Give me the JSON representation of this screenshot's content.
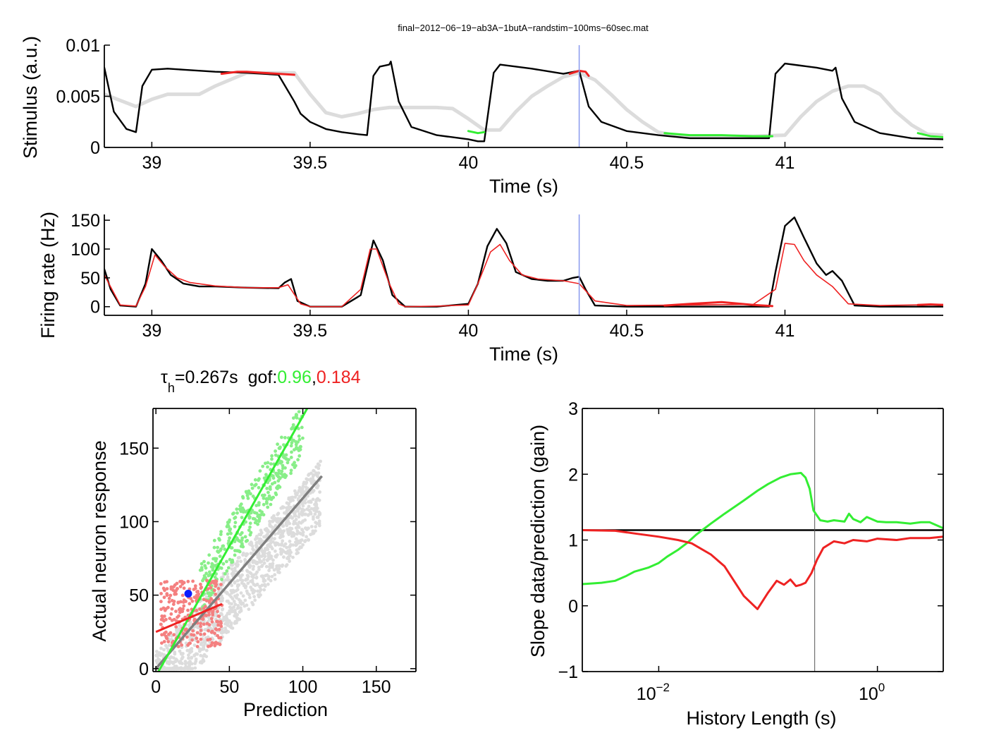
{
  "figure_title": "final−2012−06−19−ab3A−1butA−randstim−100ms−60sec.mat",
  "annotation": {
    "tau": "τ",
    "tau_sub": "h",
    "tau_value": "=0.267s",
    "gof_label": "gof:",
    "gof_green": "0.96",
    "gof_sep": ",",
    "gof_red": "0.184"
  },
  "colors": {
    "black": "#000000",
    "light_gray": "#dcdcdc",
    "green": "#33ee33",
    "red": "#ee2222",
    "blue_marker": "#0a1cff",
    "vline_blue": "#8899ee",
    "light_green": "#88ee88",
    "light_red": "#f48080",
    "gray_fit": "#7f7f7f"
  },
  "chart_data": [
    {
      "type": "line",
      "panel": "stimulus",
      "xlabel": "Time (s)",
      "ylabel": "Stimulus (a.u.)",
      "xlim": [
        38.85,
        41.5
      ],
      "ylim": [
        0,
        0.01
      ],
      "xticks": [
        39,
        39.5,
        40,
        40.5,
        41
      ],
      "xtick_labels": [
        "39",
        "39.5",
        "40",
        "40.5",
        "41"
      ],
      "yticks": [
        0,
        0.005,
        0.01
      ],
      "ytick_labels": [
        "0",
        "0.005",
        "0.01"
      ],
      "marker_time": 40.35,
      "series": [
        {
          "style": "black",
          "x": [
            38.85,
            38.88,
            38.92,
            38.95,
            38.97,
            39.0,
            39.05,
            39.1,
            39.2,
            39.3,
            39.4,
            39.45,
            39.47,
            39.5,
            39.55,
            39.6,
            39.65,
            39.68,
            39.7,
            39.72,
            39.75,
            39.755,
            39.78,
            39.82,
            39.9,
            40.0,
            40.03,
            40.05,
            40.08,
            40.1,
            40.15,
            40.2,
            40.3,
            40.35,
            40.38,
            40.42,
            40.5,
            40.6,
            40.7,
            40.8,
            40.9,
            40.95,
            40.97,
            41.0,
            41.05,
            41.1,
            41.15,
            41.16,
            41.18,
            41.22,
            41.3,
            41.4,
            41.5
          ],
          "y": [
            0.0078,
            0.0035,
            0.0018,
            0.0015,
            0.006,
            0.0076,
            0.0077,
            0.0076,
            0.0074,
            0.0073,
            0.0071,
            0.0045,
            0.0033,
            0.0025,
            0.0018,
            0.0015,
            0.0013,
            0.0012,
            0.007,
            0.0079,
            0.0081,
            0.0084,
            0.0045,
            0.002,
            0.0012,
            0.0008,
            0.0006,
            0.0006,
            0.0073,
            0.0081,
            0.0079,
            0.0077,
            0.0072,
            0.0075,
            0.004,
            0.0025,
            0.0016,
            0.0012,
            0.0009,
            0.0009,
            0.0009,
            0.0009,
            0.0072,
            0.0082,
            0.008,
            0.0078,
            0.0075,
            0.0078,
            0.0048,
            0.0025,
            0.0014,
            0.0009,
            0.0008
          ]
        },
        {
          "style": "light_gray",
          "x": [
            38.85,
            38.9,
            38.95,
            39.0,
            39.05,
            39.1,
            39.15,
            39.2,
            39.3,
            39.35,
            39.45,
            39.5,
            39.55,
            39.6,
            39.65,
            39.7,
            39.75,
            39.8,
            39.9,
            39.95,
            40.0,
            40.05,
            40.1,
            40.15,
            40.2,
            40.25,
            40.3,
            40.35,
            40.4,
            40.45,
            40.5,
            40.55,
            40.6,
            40.65,
            40.7,
            40.8,
            40.9,
            41.0,
            41.05,
            41.1,
            41.15,
            41.2,
            41.25,
            41.3,
            41.35,
            41.4,
            41.45,
            41.5
          ],
          "y": [
            0.0052,
            0.0046,
            0.004,
            0.0047,
            0.0052,
            0.0052,
            0.0052,
            0.006,
            0.0073,
            0.0073,
            0.0073,
            0.0052,
            0.0034,
            0.003,
            0.0033,
            0.0037,
            0.0039,
            0.0039,
            0.0039,
            0.0038,
            0.0028,
            0.0017,
            0.0017,
            0.0035,
            0.005,
            0.006,
            0.0069,
            0.0073,
            0.0066,
            0.0052,
            0.0037,
            0.0025,
            0.0015,
            0.0012,
            0.0011,
            0.0011,
            0.0011,
            0.0012,
            0.003,
            0.0045,
            0.0055,
            0.006,
            0.006,
            0.0052,
            0.0035,
            0.0022,
            0.0013,
            0.0012
          ]
        },
        {
          "style": "red",
          "x": [
            39.22,
            39.27,
            39.3,
            39.35,
            39.4,
            39.45
          ],
          "y": [
            0.0072,
            0.0074,
            0.0074,
            0.0073,
            0.0072,
            0.0071
          ]
        },
        {
          "style": "red",
          "x": [
            40.32,
            40.35,
            40.37,
            40.38
          ],
          "y": [
            0.0072,
            0.0075,
            0.0074,
            0.007
          ]
        },
        {
          "style": "green",
          "x": [
            40.0,
            40.03,
            40.05
          ],
          "y": [
            0.0016,
            0.0014,
            0.0015
          ]
        },
        {
          "style": "green",
          "x": [
            40.62,
            40.7,
            40.8,
            40.9,
            40.96
          ],
          "y": [
            0.0014,
            0.0012,
            0.0012,
            0.0011,
            0.0011
          ]
        },
        {
          "style": "green",
          "x": [
            41.42,
            41.46,
            41.5
          ],
          "y": [
            0.0014,
            0.0011,
            0.001
          ]
        }
      ]
    },
    {
      "type": "line",
      "panel": "firing",
      "xlabel": "Time (s)",
      "ylabel": "Firing rate (Hz)",
      "xlim": [
        38.85,
        41.5
      ],
      "ylim": [
        -15,
        160
      ],
      "xticks": [
        39,
        39.5,
        40,
        40.5,
        41
      ],
      "xtick_labels": [
        "39",
        "39.5",
        "40",
        "40.5",
        "41"
      ],
      "yticks": [
        0,
        50,
        100,
        150
      ],
      "ytick_labels": [
        "0",
        "50",
        "100",
        "150"
      ],
      "marker_time": 40.35,
      "series": [
        {
          "style": "black",
          "x": [
            38.85,
            38.87,
            38.9,
            38.95,
            38.98,
            39.0,
            39.03,
            39.06,
            39.1,
            39.15,
            39.2,
            39.3,
            39.4,
            39.42,
            39.44,
            39.46,
            39.5,
            39.6,
            39.66,
            39.7,
            39.73,
            39.76,
            39.8,
            39.9,
            40.0,
            40.03,
            40.06,
            40.09,
            40.12,
            40.15,
            40.2,
            40.25,
            40.3,
            40.33,
            40.35,
            40.37,
            40.4,
            40.5,
            40.7,
            40.9,
            40.95,
            40.97,
            41.0,
            41.03,
            41.06,
            41.1,
            41.13,
            41.15,
            41.18,
            41.22,
            41.3,
            41.4,
            41.5
          ],
          "y": [
            65,
            30,
            2,
            0,
            40,
            100,
            80,
            55,
            40,
            35,
            35,
            33,
            32,
            42,
            48,
            10,
            0,
            0,
            20,
            115,
            80,
            20,
            0,
            0,
            5,
            40,
            105,
            135,
            110,
            60,
            48,
            45,
            45,
            50,
            52,
            30,
            2,
            0,
            0,
            0,
            0,
            60,
            140,
            155,
            120,
            75,
            55,
            62,
            45,
            2,
            0,
            0,
            0
          ]
        },
        {
          "style": "red",
          "x": [
            38.85,
            38.9,
            38.95,
            38.98,
            39.01,
            39.04,
            39.08,
            39.12,
            39.2,
            39.3,
            39.4,
            39.43,
            39.47,
            39.5,
            39.6,
            39.66,
            39.69,
            39.71,
            39.75,
            39.78,
            39.8,
            39.9,
            40.0,
            40.03,
            40.07,
            40.1,
            40.13,
            40.17,
            40.22,
            40.3,
            40.35,
            40.4,
            40.5,
            40.7,
            40.9,
            40.97,
            41.0,
            41.03,
            41.06,
            41.1,
            41.15,
            41.2,
            41.3,
            41.4,
            41.5
          ],
          "y": [
            55,
            3,
            1,
            35,
            90,
            70,
            50,
            42,
            36,
            33,
            33,
            38,
            5,
            0,
            0,
            30,
            100,
            100,
            40,
            5,
            0,
            1,
            3,
            40,
            95,
            108,
            80,
            55,
            48,
            45,
            40,
            10,
            2,
            3,
            4,
            30,
            110,
            108,
            80,
            55,
            35,
            5,
            2,
            3,
            4
          ]
        },
        {
          "style": "red_thick",
          "x": [
            40.62,
            40.7,
            40.8,
            40.9,
            40.96
          ],
          "y": [
            2,
            5,
            8,
            3,
            1
          ]
        },
        {
          "style": "red_thick",
          "x": [
            41.42,
            41.46,
            41.5
          ],
          "y": [
            3,
            4,
            3
          ]
        }
      ]
    },
    {
      "type": "scatter",
      "panel": "scatter",
      "xlabel": "Prediction",
      "ylabel": "Actual neuron response",
      "xlim": [
        -2,
        177
      ],
      "ylim": [
        -2,
        177
      ],
      "xticks": [
        0,
        50,
        100,
        150
      ],
      "xtick_labels": [
        "0",
        "50",
        "100",
        "150"
      ],
      "yticks": [
        0,
        50,
        100,
        150
      ],
      "ytick_labels": [
        "0",
        "50",
        "100",
        "150"
      ],
      "fits": [
        {
          "style": "gray_fit",
          "x": [
            0,
            113
          ],
          "y": [
            0,
            131
          ]
        },
        {
          "style": "green",
          "x": [
            0,
            103
          ],
          "y": [
            -5,
            177
          ]
        },
        {
          "style": "red",
          "x": [
            0,
            45
          ],
          "y": [
            25,
            44
          ]
        }
      ],
      "highlight_point": {
        "x": 22,
        "y": 51
      }
    },
    {
      "type": "line",
      "panel": "gain",
      "xlabel": "History Length (s)",
      "ylabel": "Slope data/prediction (gain)",
      "xscale": "log",
      "xlim": [
        0.002,
        4
      ],
      "ylim": [
        -1,
        3
      ],
      "xticks": [
        0.01,
        1
      ],
      "xtick_base": "10",
      "xtick_exponents": [
        "−2",
        "0"
      ],
      "yticks": [
        -1,
        0,
        1,
        2,
        3
      ],
      "ytick_labels": [
        "−1",
        "0",
        "1",
        "2",
        "3"
      ],
      "vline_x": 0.267,
      "hline_y": 1.15,
      "series": [
        {
          "style": "green",
          "x": [
            0.002,
            0.003,
            0.004,
            0.005,
            0.006,
            0.008,
            0.01,
            0.012,
            0.015,
            0.018,
            0.022,
            0.03,
            0.04,
            0.06,
            0.08,
            0.1,
            0.13,
            0.16,
            0.2,
            0.22,
            0.24,
            0.26,
            0.3,
            0.35,
            0.4,
            0.5,
            0.55,
            0.6,
            0.7,
            0.8,
            1.0,
            1.2,
            1.5,
            2,
            2.5,
            3,
            4
          ],
          "y": [
            0.33,
            0.35,
            0.38,
            0.45,
            0.52,
            0.58,
            0.65,
            0.75,
            0.85,
            0.95,
            1.08,
            1.25,
            1.4,
            1.6,
            1.75,
            1.85,
            1.95,
            2.0,
            2.02,
            1.95,
            1.78,
            1.45,
            1.3,
            1.28,
            1.3,
            1.28,
            1.4,
            1.32,
            1.27,
            1.35,
            1.28,
            1.27,
            1.27,
            1.25,
            1.27,
            1.27,
            1.18
          ]
        },
        {
          "style": "red",
          "x": [
            0.002,
            0.004,
            0.006,
            0.01,
            0.015,
            0.02,
            0.03,
            0.04,
            0.06,
            0.08,
            0.1,
            0.12,
            0.14,
            0.16,
            0.18,
            0.2,
            0.22,
            0.25,
            0.28,
            0.32,
            0.4,
            0.5,
            0.6,
            0.8,
            1.0,
            1.5,
            2,
            3,
            4
          ],
          "y": [
            1.15,
            1.14,
            1.1,
            1.05,
            1.0,
            0.95,
            0.78,
            0.6,
            0.15,
            -0.05,
            0.2,
            0.38,
            0.32,
            0.4,
            0.3,
            0.32,
            0.35,
            0.5,
            0.7,
            0.88,
            0.98,
            0.95,
            1.0,
            0.98,
            1.02,
            1.0,
            1.03,
            1.03,
            1.05
          ]
        }
      ]
    }
  ]
}
